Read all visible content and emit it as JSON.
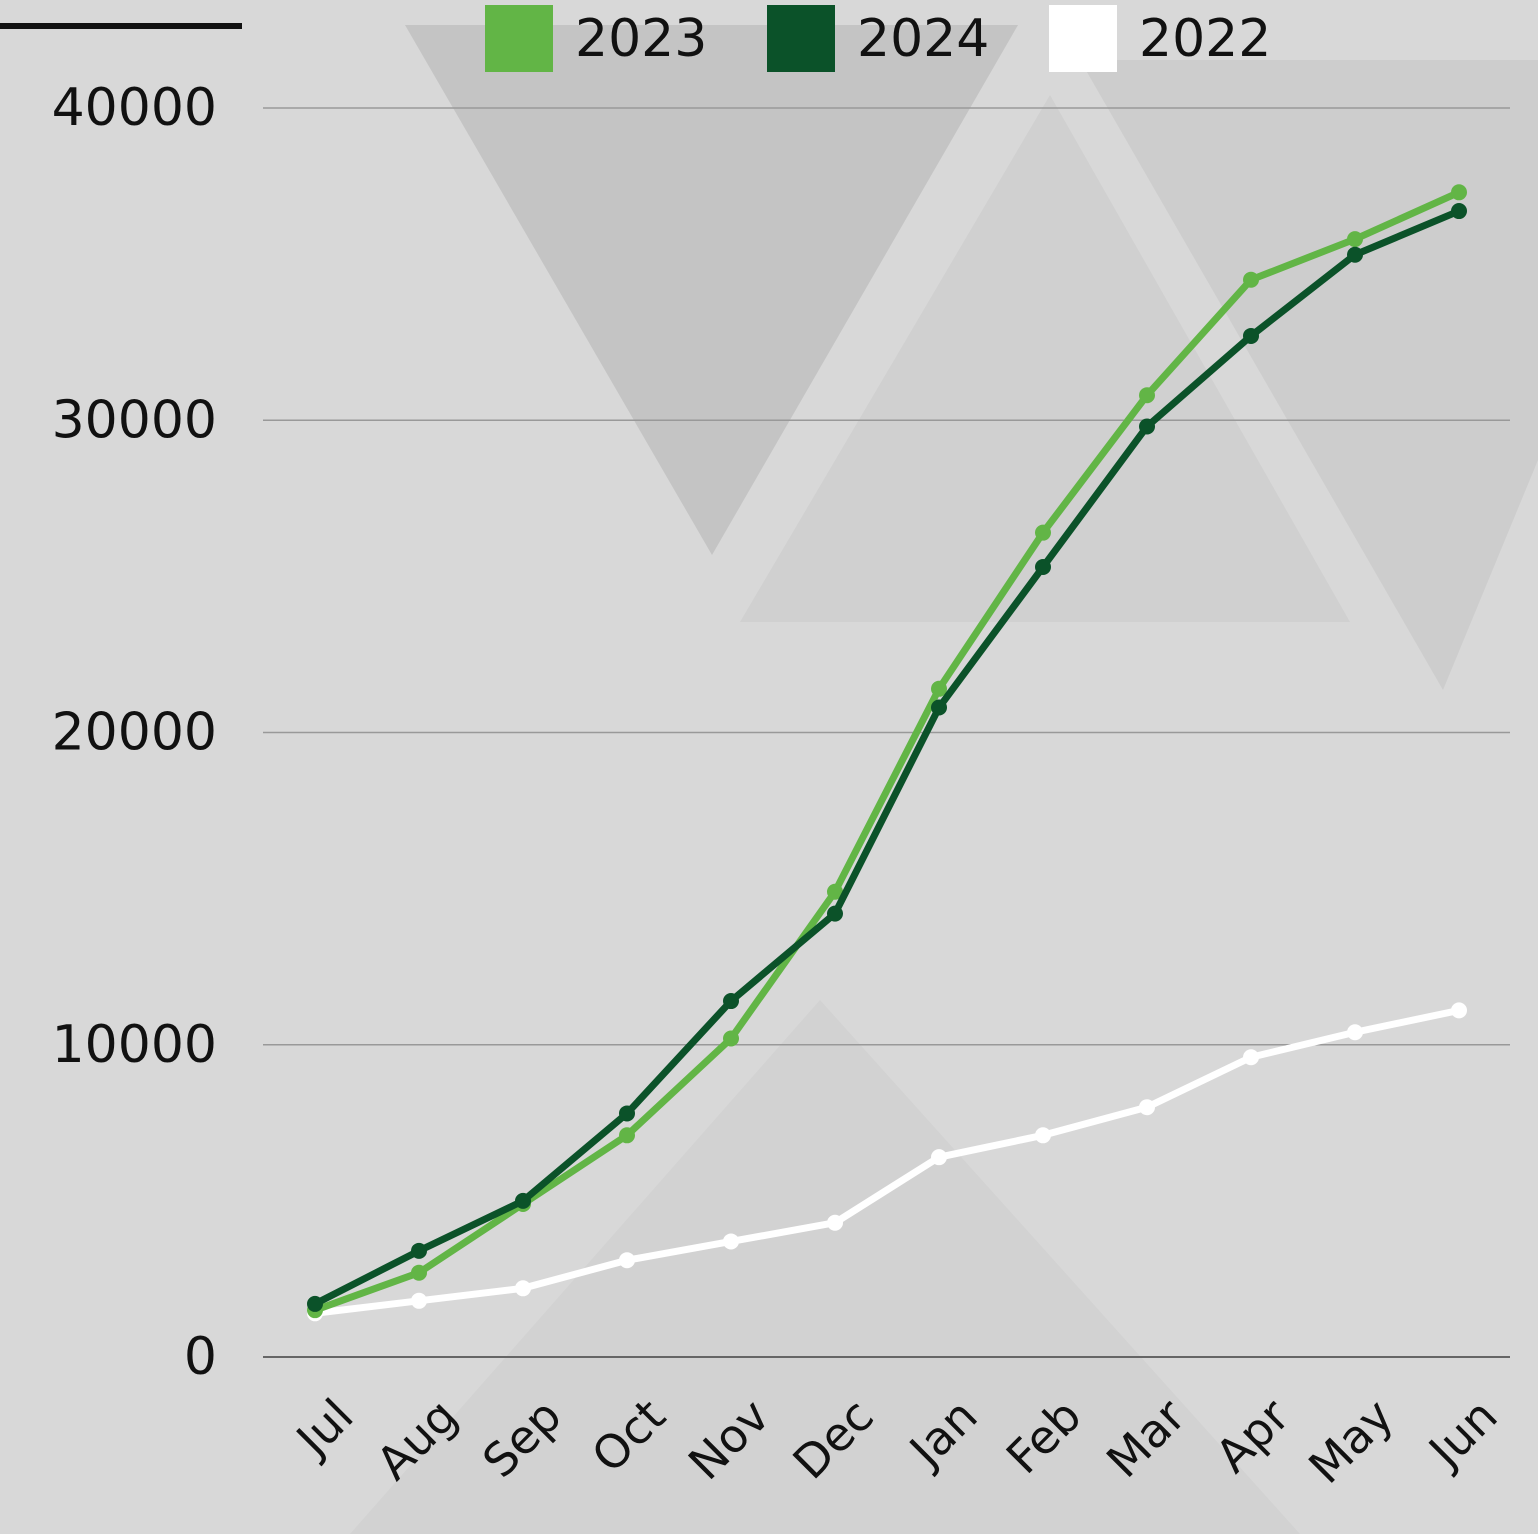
{
  "chart_data": {
    "type": "line",
    "categories": [
      "Jul",
      "Aug",
      "Sep",
      "Oct",
      "Nov",
      "Dec",
      "Jan",
      "Feb",
      "Mar",
      "Apr",
      "May",
      "Jun"
    ],
    "series": [
      {
        "name": "2023",
        "color": "#62b546",
        "values": [
          1500,
          2700,
          4900,
          7100,
          10200,
          14900,
          21400,
          26400,
          30800,
          34500,
          35800,
          37300
        ]
      },
      {
        "name": "2024",
        "color": "#0b5229",
        "values": [
          1700,
          3400,
          5000,
          7800,
          11400,
          14200,
          20800,
          25300,
          29800,
          32700,
          35300,
          36700
        ]
      },
      {
        "name": "2022",
        "color": "#ffffff",
        "values": [
          1400,
          1800,
          2200,
          3100,
          3700,
          4300,
          6400,
          7100,
          8000,
          9600,
          10400,
          11100
        ]
      }
    ],
    "ylim": [
      0,
      40000
    ],
    "yticks": [
      0,
      10000,
      20000,
      30000,
      40000
    ],
    "grid": true,
    "legend": "top"
  }
}
